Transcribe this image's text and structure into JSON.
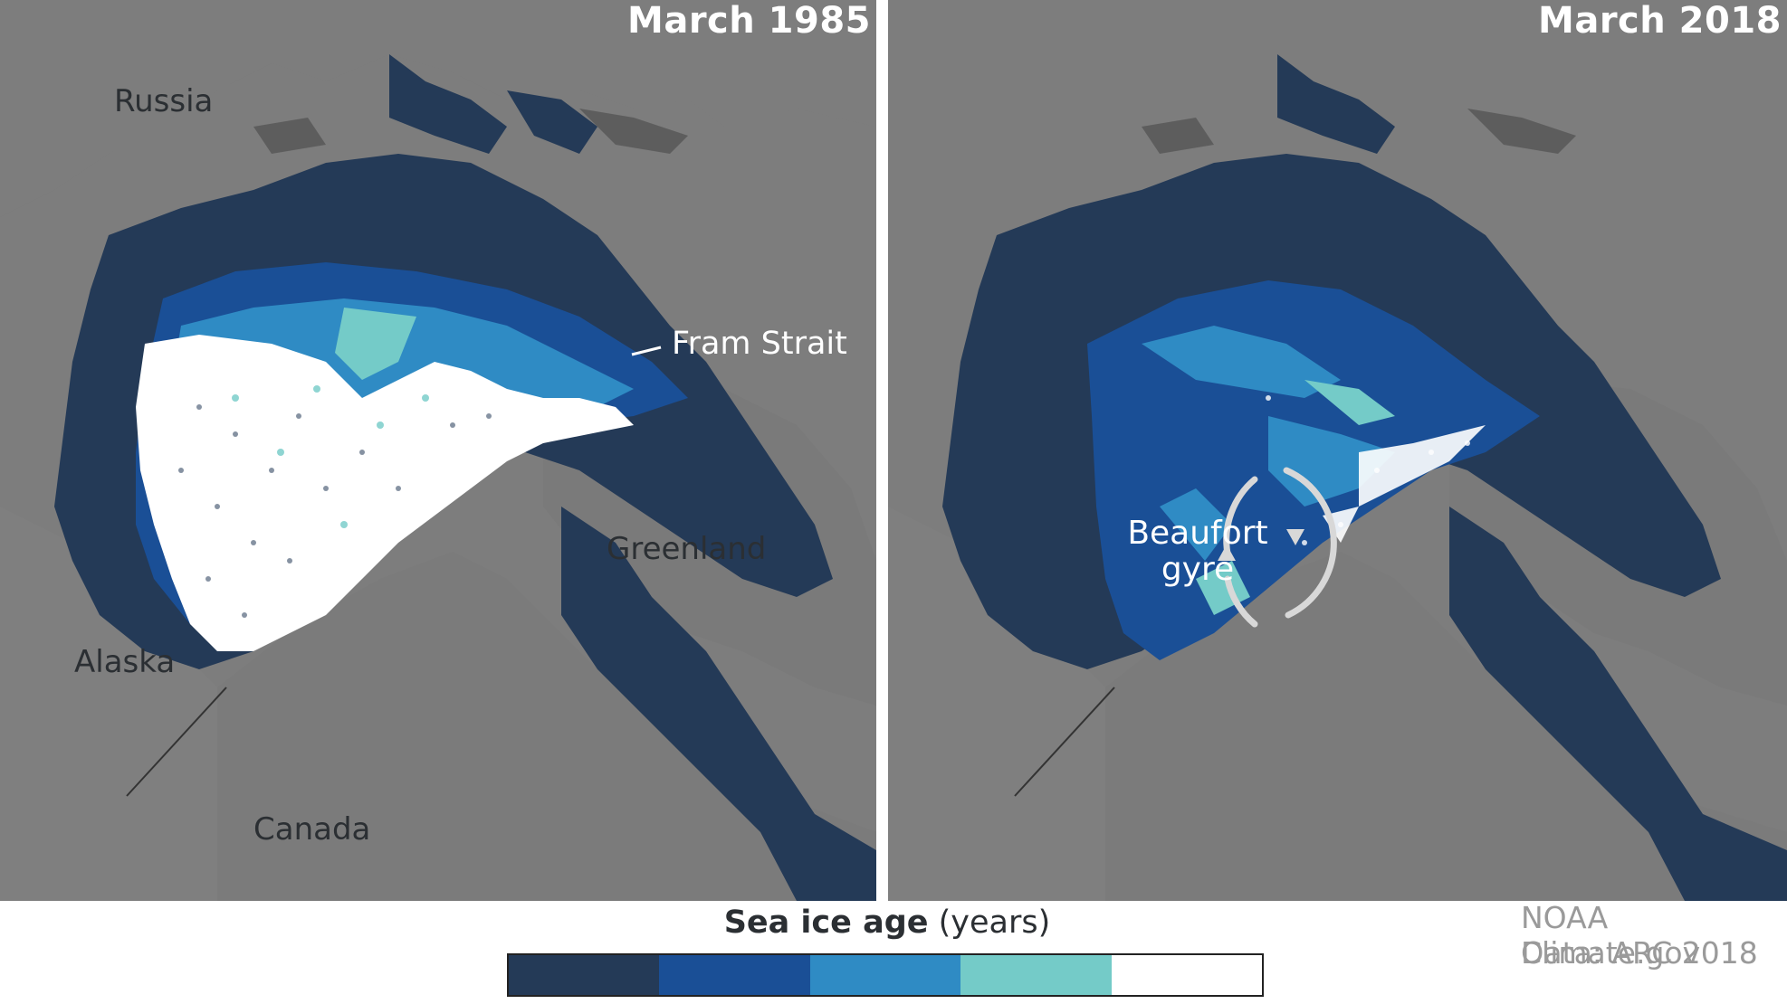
{
  "panels": [
    {
      "title": "March 1985"
    },
    {
      "title": "March 2018"
    }
  ],
  "labels": {
    "russia": "Russia",
    "alaska": "Alaska",
    "canada": "Canada",
    "greenland": "Greenland",
    "fram_strait": "Fram Strait",
    "beaufort_line1": "Beaufort",
    "beaufort_line2": "gyre"
  },
  "legend": {
    "title_bold": "Sea ice age",
    "title_units": "(years)",
    "swatches": [
      {
        "color": "#243a57"
      },
      {
        "color": "#1a4f96"
      },
      {
        "color": "#2f8bc4"
      },
      {
        "color": "#74cbc8"
      },
      {
        "color": "#ffffff"
      }
    ]
  },
  "credits": {
    "line1": "NOAA Climate.gov",
    "line2": "Data: ARC 2018"
  },
  "colors": {
    "land": "#7d7d7d",
    "land_dark": "#5a5a5a",
    "ocean": "#5f5f5f",
    "first_year": "#243a57",
    "ice_2": "#1a4f96",
    "ice_3": "#2f8bc4",
    "ice_4": "#74cbc8",
    "ice_5plus": "#ffffff"
  }
}
